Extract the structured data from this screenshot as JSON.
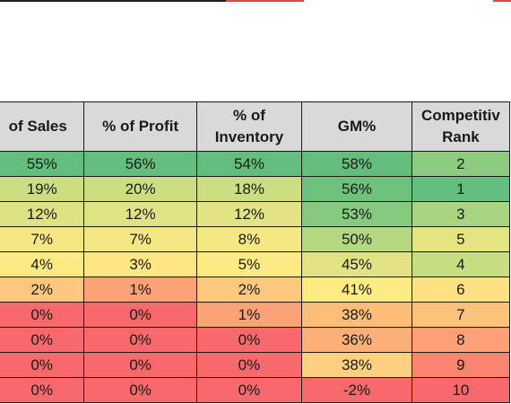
{
  "headers": [
    "of Sales",
    "% of Profit",
    "% of\nInventory",
    "GM%",
    "Competitiv\nRank"
  ],
  "rows": [
    {
      "sales": "55%",
      "profit": "56%",
      "inventory": "54%",
      "gm": "58%",
      "rank": "2",
      "colors": [
        "#63be7b",
        "#63be7b",
        "#63be7b",
        "#63be7b",
        "#8ccc7f"
      ]
    },
    {
      "sales": "19%",
      "profit": "20%",
      "inventory": "18%",
      "gm": "56%",
      "rank": "1",
      "colors": [
        "#cbde83",
        "#cbde83",
        "#cbde83",
        "#6ec17c",
        "#63be7b"
      ]
    },
    {
      "sales": "12%",
      "profit": "12%",
      "inventory": "12%",
      "gm": "53%",
      "rank": "3",
      "colors": [
        "#dfe283",
        "#dfe383",
        "#e2e383",
        "#85ca7e",
        "#a8d480"
      ]
    },
    {
      "sales": "7%",
      "profit": "7%",
      "inventory": "8%",
      "gm": "50%",
      "rank": "5",
      "colors": [
        "#f5e784",
        "#f5e784",
        "#f5e784",
        "#b4d881",
        "#e5e483"
      ]
    },
    {
      "sales": "4%",
      "profit": "3%",
      "inventory": "5%",
      "gm": "45%",
      "rank": "4",
      "colors": [
        "#fee983",
        "#fee683",
        "#fee983",
        "#e2e383",
        "#c7dd82"
      ]
    },
    {
      "sales": "2%",
      "profit": "1%",
      "inventory": "2%",
      "gm": "41%",
      "rank": "6",
      "colors": [
        "#fdc77d",
        "#fba276",
        "#fdc97d",
        "#feeb84",
        "#fee282"
      ]
    },
    {
      "sales": "0%",
      "profit": "0%",
      "inventory": "1%",
      "gm": "38%",
      "rank": "7",
      "colors": [
        "#f8696b",
        "#f8696b",
        "#fba276",
        "#fdbd7b",
        "#fdc27c"
      ]
    },
    {
      "sales": "0%",
      "profit": "0%",
      "inventory": "0%",
      "gm": "36%",
      "rank": "8",
      "colors": [
        "#f8696b",
        "#f8696b",
        "#f8696b",
        "#fdaf78",
        "#fca177"
      ]
    },
    {
      "sales": "0%",
      "profit": "0%",
      "inventory": "0%",
      "gm": "38%",
      "rank": "9",
      "colors": [
        "#f8696b",
        "#f8696b",
        "#f8696b",
        "#fdd17f",
        "#f98570"
      ]
    },
    {
      "sales": "0%",
      "profit": "0%",
      "inventory": "0%",
      "gm": "-2%",
      "rank": "10",
      "colors": [
        "#f8696b",
        "#f8696b",
        "#f8696b",
        "#f8696b",
        "#f8696b"
      ]
    }
  ]
}
